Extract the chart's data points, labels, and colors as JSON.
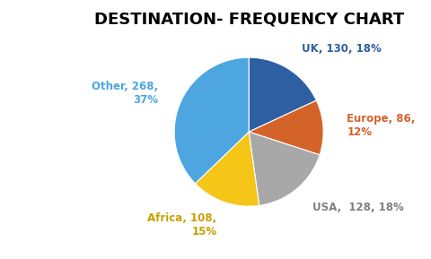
{
  "title": "DESTINATION- FREQUENCY CHART",
  "slices": [
    "UK",
    "Europe",
    "USA",
    "Africa",
    "Other"
  ],
  "values": [
    130,
    86,
    128,
    108,
    268
  ],
  "percentages": [
    18,
    12,
    18,
    15,
    37
  ],
  "colors": [
    "#2e5fa3",
    "#d4632a",
    "#a8a8a8",
    "#f5c518",
    "#4da6e0"
  ],
  "label_colors": [
    "#2e5fa3",
    "#d4632a",
    "#808080",
    "#c8a000",
    "#4da6e0"
  ],
  "background_color": "#ffffff",
  "title_fontsize": 13,
  "label_fontsize": 8.5
}
